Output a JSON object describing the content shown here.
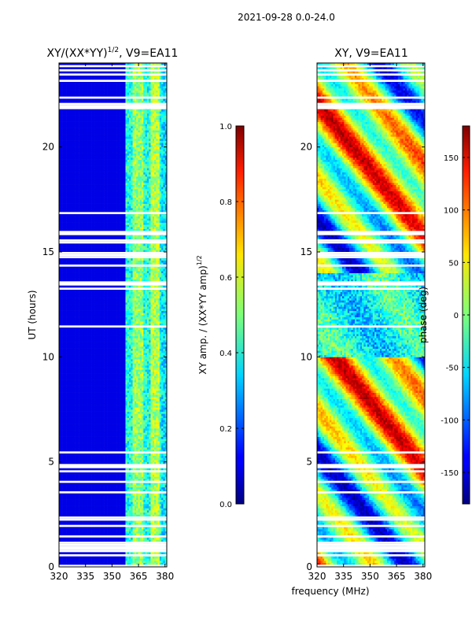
{
  "figure": {
    "suptitle": "2021-09-28 0.0-24.0",
    "shared_xlabel": "frequency (MHz)"
  },
  "chart_data": [
    {
      "type": "heatmap",
      "title": "XY/(XX*YY)",
      "title_sup": "1/2",
      "title_suffix": ", V9=EA11",
      "xlabel": "",
      "ylabel": "UT (hours)",
      "xlim": [
        320,
        381
      ],
      "ylim": [
        0,
        24
      ],
      "xticks": [
        320,
        335,
        350,
        365,
        380
      ],
      "yticks": [
        0,
        5,
        10,
        15,
        20
      ],
      "value_range": [
        0.0,
        1.0
      ],
      "colormap": "jet",
      "colorbar": {
        "label": "XY amp. / (XX*YY amp)",
        "label_sup": "1/2",
        "ticks": [
          "0.0",
          "0.2",
          "0.4",
          "0.6",
          "0.8",
          "1.0"
        ]
      }
    },
    {
      "type": "heatmap",
      "title": "XY, V9=EA11",
      "xlabel": "frequency (MHz)",
      "ylabel": "",
      "xlim": [
        320,
        381
      ],
      "ylim": [
        0,
        24
      ],
      "xticks": [
        320,
        335,
        350,
        365,
        380
      ],
      "yticks": [
        0,
        5,
        10,
        15,
        20
      ],
      "value_range": [
        -180,
        180
      ],
      "colormap": "jet",
      "colorbar": {
        "label": "phase (deg)",
        "ticks": [
          "-150",
          "-100",
          "-50",
          "0",
          "50",
          "100",
          "150"
        ]
      }
    }
  ]
}
